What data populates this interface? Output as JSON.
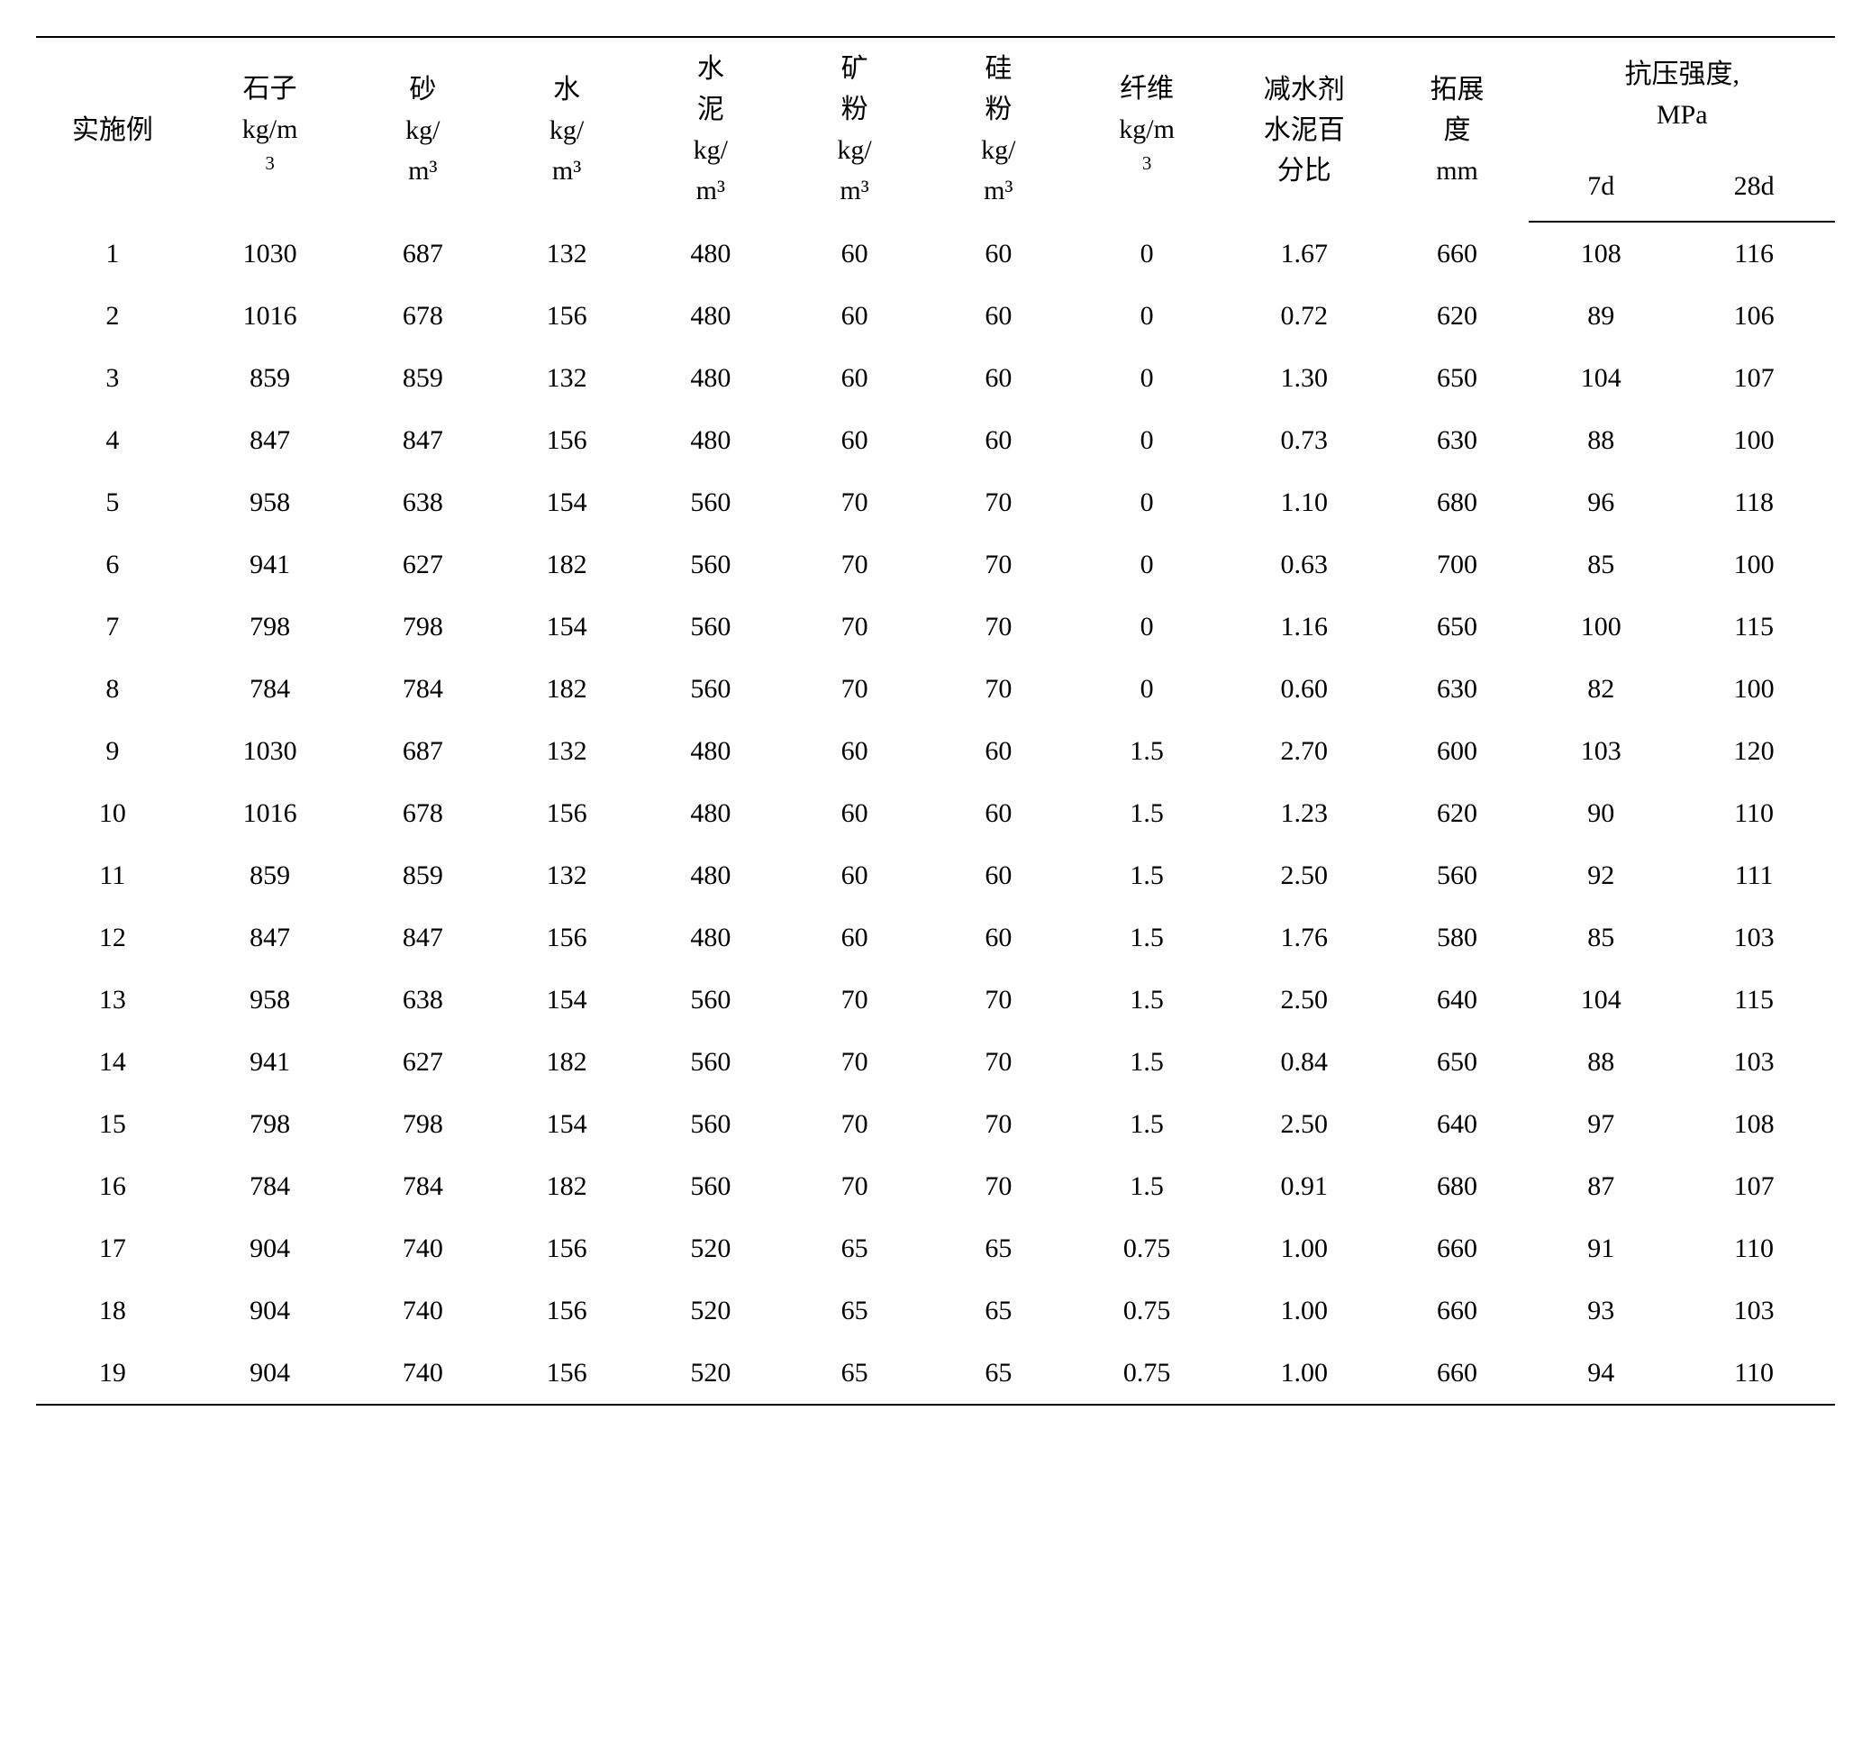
{
  "table": {
    "type": "table",
    "font_family": "SimSun",
    "header_fontsize": 30,
    "cell_fontsize": 30,
    "border_color": "#000000",
    "background_color": "#ffffff",
    "text_color": "#000000",
    "col_widths_pct": [
      8.5,
      9,
      8,
      8,
      8,
      8,
      8,
      8.5,
      9,
      8,
      8,
      9
    ],
    "headers": {
      "c1": "实施例",
      "c2_l1": "石子",
      "c2_l2": "kg/m",
      "c2_l3": "3",
      "c3_l1": "砂",
      "c3_l2": "kg/",
      "c3_l3": "m³",
      "c4_l1": "水",
      "c4_l2": "kg/",
      "c4_l3": "m³",
      "c5_l1": "水",
      "c5_l2": "泥",
      "c5_l3": "kg/",
      "c5_l4": "m³",
      "c6_l1": "矿",
      "c6_l2": "粉",
      "c6_l3": "kg/",
      "c6_l4": "m³",
      "c7_l1": "硅",
      "c7_l2": "粉",
      "c7_l3": "kg/",
      "c7_l4": "m³",
      "c8_l1": "纤维",
      "c8_l2": "kg/m",
      "c8_l3": "3",
      "c9_l1": "减水剂",
      "c9_l2": "水泥百",
      "c9_l3": "分比",
      "c10_l1": "拓展",
      "c10_l2": "度",
      "c10_l3": "mm",
      "c11_top_l1": "抗压强度,",
      "c11_top_l2": "MPa",
      "c11_sub1": "7d",
      "c11_sub2": "28d"
    },
    "rows": [
      [
        "1",
        "1030",
        "687",
        "132",
        "480",
        "60",
        "60",
        "0",
        "1.67",
        "660",
        "108",
        "116"
      ],
      [
        "2",
        "1016",
        "678",
        "156",
        "480",
        "60",
        "60",
        "0",
        "0.72",
        "620",
        "89",
        "106"
      ],
      [
        "3",
        "859",
        "859",
        "132",
        "480",
        "60",
        "60",
        "0",
        "1.30",
        "650",
        "104",
        "107"
      ],
      [
        "4",
        "847",
        "847",
        "156",
        "480",
        "60",
        "60",
        "0",
        "0.73",
        "630",
        "88",
        "100"
      ],
      [
        "5",
        "958",
        "638",
        "154",
        "560",
        "70",
        "70",
        "0",
        "1.10",
        "680",
        "96",
        "118"
      ],
      [
        "6",
        "941",
        "627",
        "182",
        "560",
        "70",
        "70",
        "0",
        "0.63",
        "700",
        "85",
        "100"
      ],
      [
        "7",
        "798",
        "798",
        "154",
        "560",
        "70",
        "70",
        "0",
        "1.16",
        "650",
        "100",
        "115"
      ],
      [
        "8",
        "784",
        "784",
        "182",
        "560",
        "70",
        "70",
        "0",
        "0.60",
        "630",
        "82",
        "100"
      ],
      [
        "9",
        "1030",
        "687",
        "132",
        "480",
        "60",
        "60",
        "1.5",
        "2.70",
        "600",
        "103",
        "120"
      ],
      [
        "10",
        "1016",
        "678",
        "156",
        "480",
        "60",
        "60",
        "1.5",
        "1.23",
        "620",
        "90",
        "110"
      ],
      [
        "11",
        "859",
        "859",
        "132",
        "480",
        "60",
        "60",
        "1.5",
        "2.50",
        "560",
        "92",
        "111"
      ],
      [
        "12",
        "847",
        "847",
        "156",
        "480",
        "60",
        "60",
        "1.5",
        "1.76",
        "580",
        "85",
        "103"
      ],
      [
        "13",
        "958",
        "638",
        "154",
        "560",
        "70",
        "70",
        "1.5",
        "2.50",
        "640",
        "104",
        "115"
      ],
      [
        "14",
        "941",
        "627",
        "182",
        "560",
        "70",
        "70",
        "1.5",
        "0.84",
        "650",
        "88",
        "103"
      ],
      [
        "15",
        "798",
        "798",
        "154",
        "560",
        "70",
        "70",
        "1.5",
        "2.50",
        "640",
        "97",
        "108"
      ],
      [
        "16",
        "784",
        "784",
        "182",
        "560",
        "70",
        "70",
        "1.5",
        "0.91",
        "680",
        "87",
        "107"
      ],
      [
        "17",
        "904",
        "740",
        "156",
        "520",
        "65",
        "65",
        "0.75",
        "1.00",
        "660",
        "91",
        "110"
      ],
      [
        "18",
        "904",
        "740",
        "156",
        "520",
        "65",
        "65",
        "0.75",
        "1.00",
        "660",
        "93",
        "103"
      ],
      [
        "19",
        "904",
        "740",
        "156",
        "520",
        "65",
        "65",
        "0.75",
        "1.00",
        "660",
        "94",
        "110"
      ]
    ]
  }
}
